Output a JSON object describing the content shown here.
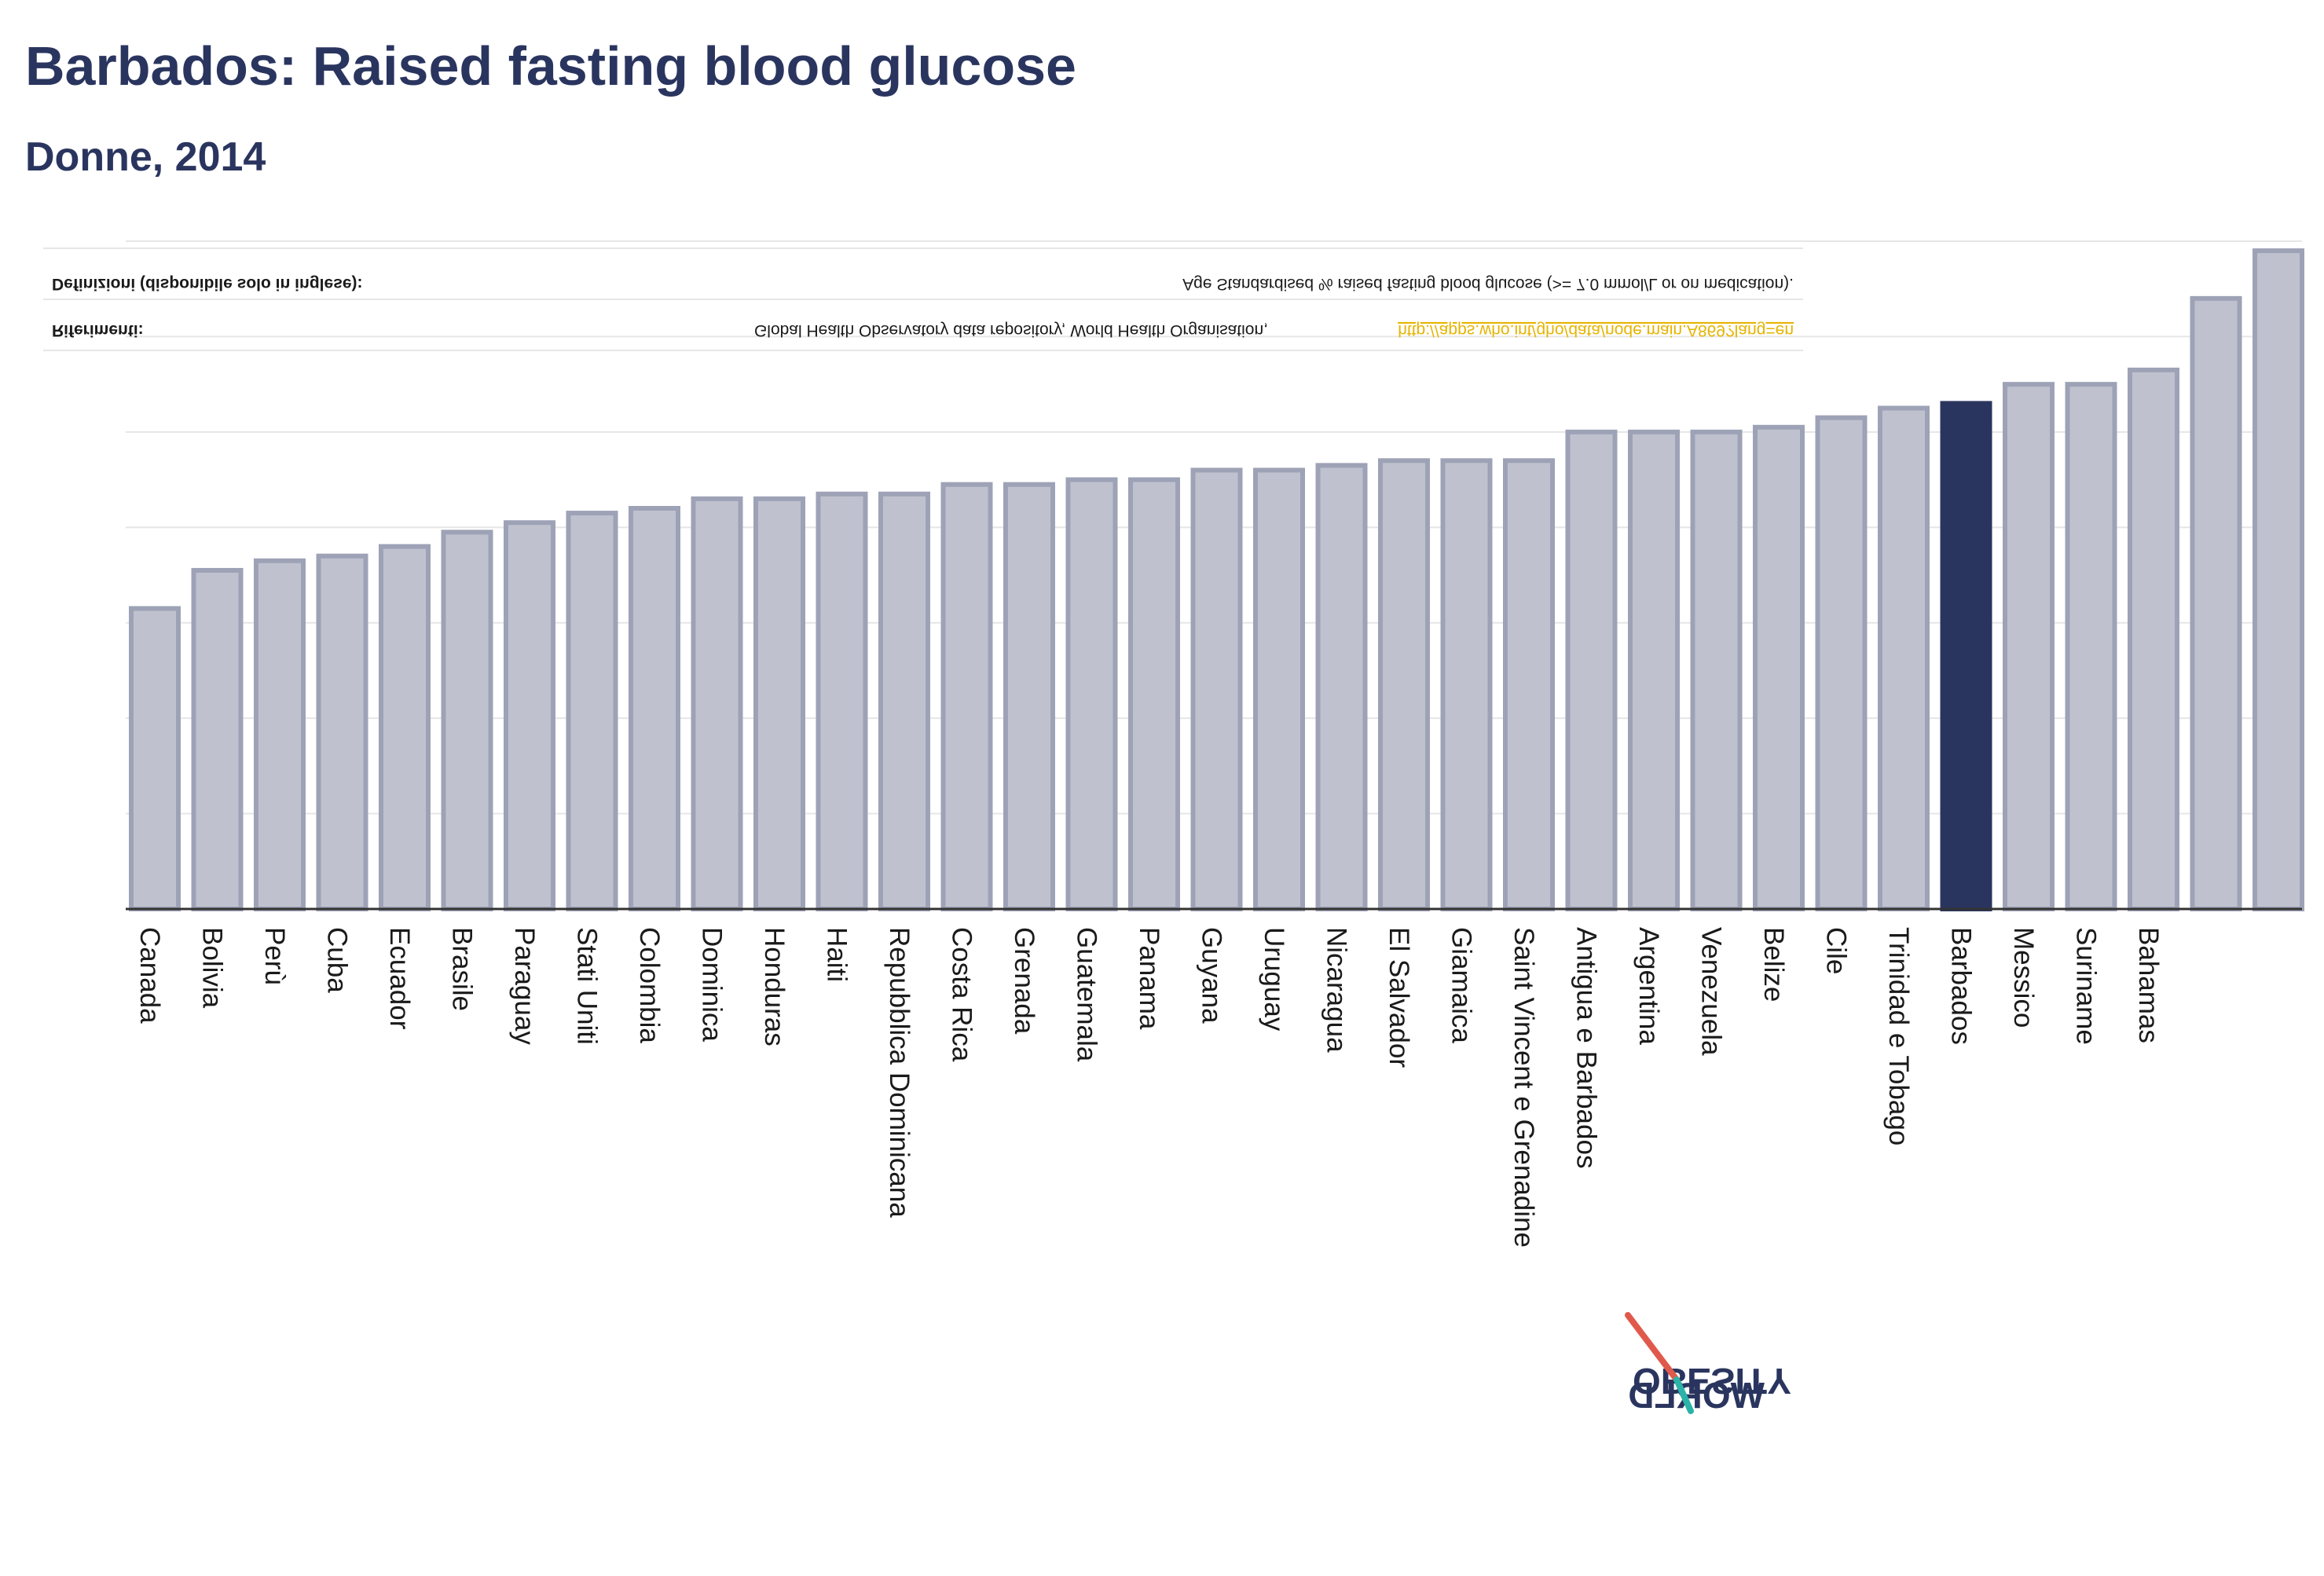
{
  "header": {
    "title": "Barbados: Raised fasting blood glucose",
    "subtitle": "Donne, 2014"
  },
  "notes": {
    "definitions_label": "Definizioni (disponibile solo in inglese):",
    "definitions_text": "Age Standardised % raised fasting blood glucose (>= 7.0 mmol/L or on medication).",
    "references_label": "Riferimenti:",
    "references_text": "Global Health Observatory data repository, World Health Organisation,",
    "references_link": "http://apps.who.int/gho/data/node.main.A869?lang=en"
  },
  "logo": {
    "line1": "OBESITY",
    "line2": "WORLD"
  },
  "colors": {
    "bar_default": "#bfc2ce",
    "bar_default_stroke": "#9ea2b6",
    "bar_highlight": "#2a355f",
    "title": "#2a355f",
    "gridline": "#e6e6e6",
    "logo_accent_red": "#e05a4c",
    "logo_accent_teal": "#2bb3a8"
  },
  "chart_data": {
    "type": "bar",
    "categories": [
      "Canada",
      "Bolivia",
      "Perù",
      "Cuba",
      "Ecuador",
      "Brasile",
      "Paraguay",
      "Stati Uniti",
      "Colombia",
      "Dominica",
      "Honduras",
      "Haiti",
      "Repubblica Dominicana",
      "Costa Rica",
      "Grenada",
      "Guatemala",
      "Panama",
      "Guyana",
      "Uruguay",
      "Nicaragua",
      "El Salvador",
      "Giamaica",
      "Saint Vincent e Grenadine",
      "Antigua e Barbados",
      "Argentina",
      "Venezuela",
      "Belize",
      "Cile",
      "Trinidad e Tobago",
      "Barbados",
      "Messico",
      "Suriname",
      "Bahamas",
      "",
      ""
    ],
    "values": [
      6.3,
      7.1,
      7.3,
      7.4,
      7.6,
      7.9,
      8.1,
      8.3,
      8.4,
      8.6,
      8.6,
      8.7,
      8.7,
      8.9,
      8.9,
      9.0,
      9.0,
      9.2,
      9.2,
      9.3,
      9.4,
      9.4,
      9.4,
      10.0,
      10.0,
      10.0,
      10.1,
      10.3,
      10.5,
      10.6,
      11.0,
      11.0,
      11.3,
      12.8,
      13.8
    ],
    "highlight": "Barbados",
    "ylim": [
      0,
      14
    ],
    "grid": true,
    "legend": "none",
    "xlabel": "",
    "ylabel": ""
  }
}
